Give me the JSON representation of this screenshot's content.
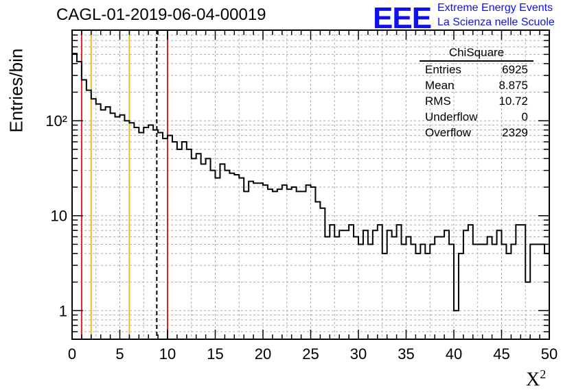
{
  "title": "CAGL-01-2019-06-04-00019",
  "logo": {
    "mark": "EEE",
    "line1": "Extreme Energy Events",
    "line2": "La Scienza nelle Scuole",
    "color": "#1010ee"
  },
  "stats_box": {
    "name": "ChiSquare",
    "rows": [
      {
        "label": "Entries",
        "value": "6925"
      },
      {
        "label": "Mean",
        "value": "8.875"
      },
      {
        "label": "RMS",
        "value": "10.72"
      },
      {
        "label": "Underflow",
        "value": "0"
      },
      {
        "label": "Overflow",
        "value": "2329"
      }
    ]
  },
  "chart_data": {
    "type": "histogram",
    "title": "CAGL-01-2019-06-04-00019",
    "xlabel": "X",
    "xlabel_sup": "2",
    "ylabel": "Entries/bin",
    "x_scale": "linear",
    "y_scale": "log",
    "xlim": [
      0,
      50
    ],
    "ylim": [
      0.5,
      900
    ],
    "bin_width": 0.5,
    "x_ticks": [
      0,
      5,
      10,
      15,
      20,
      25,
      30,
      35,
      40,
      45,
      50
    ],
    "x_tick_labels": [
      "0",
      "5",
      "10",
      "15",
      "20",
      "25",
      "30",
      "35",
      "40",
      "45",
      "50"
    ],
    "y_ticks": [
      1,
      10,
      100
    ],
    "y_tick_labels": [
      "1",
      "10",
      "10²"
    ],
    "grid": true,
    "line_color": "#000000",
    "values": [
      510,
      420,
      270,
      210,
      170,
      150,
      130,
      140,
      120,
      110,
      115,
      100,
      95,
      85,
      75,
      85,
      90,
      80,
      75,
      65,
      70,
      60,
      50,
      60,
      50,
      40,
      45,
      35,
      40,
      30,
      25,
      35,
      30,
      28,
      27,
      25,
      18,
      23,
      22,
      22,
      21,
      19,
      18,
      19,
      21,
      19,
      20,
      18,
      18,
      21,
      20,
      14,
      12,
      6,
      8,
      6,
      7,
      7,
      8,
      6,
      5,
      7,
      5,
      7,
      8,
      4,
      7,
      6,
      8,
      5,
      6,
      5,
      4,
      5,
      4,
      5,
      6,
      6,
      7,
      5,
      1,
      4,
      7,
      8,
      5,
      5,
      5,
      6,
      5,
      7,
      5,
      4,
      5,
      8,
      8,
      2,
      5,
      5,
      5,
      4
    ],
    "reference_lines": [
      {
        "x": 1,
        "color": "#dd2222",
        "style": "solid"
      },
      {
        "x": 2,
        "color": "#eebb22",
        "style": "solid"
      },
      {
        "x": 6,
        "color": "#eebb22",
        "style": "solid"
      },
      {
        "x": 8.875,
        "color": "#000000",
        "style": "dashed"
      },
      {
        "x": 10,
        "color": "#dd2222",
        "style": "solid"
      }
    ]
  }
}
